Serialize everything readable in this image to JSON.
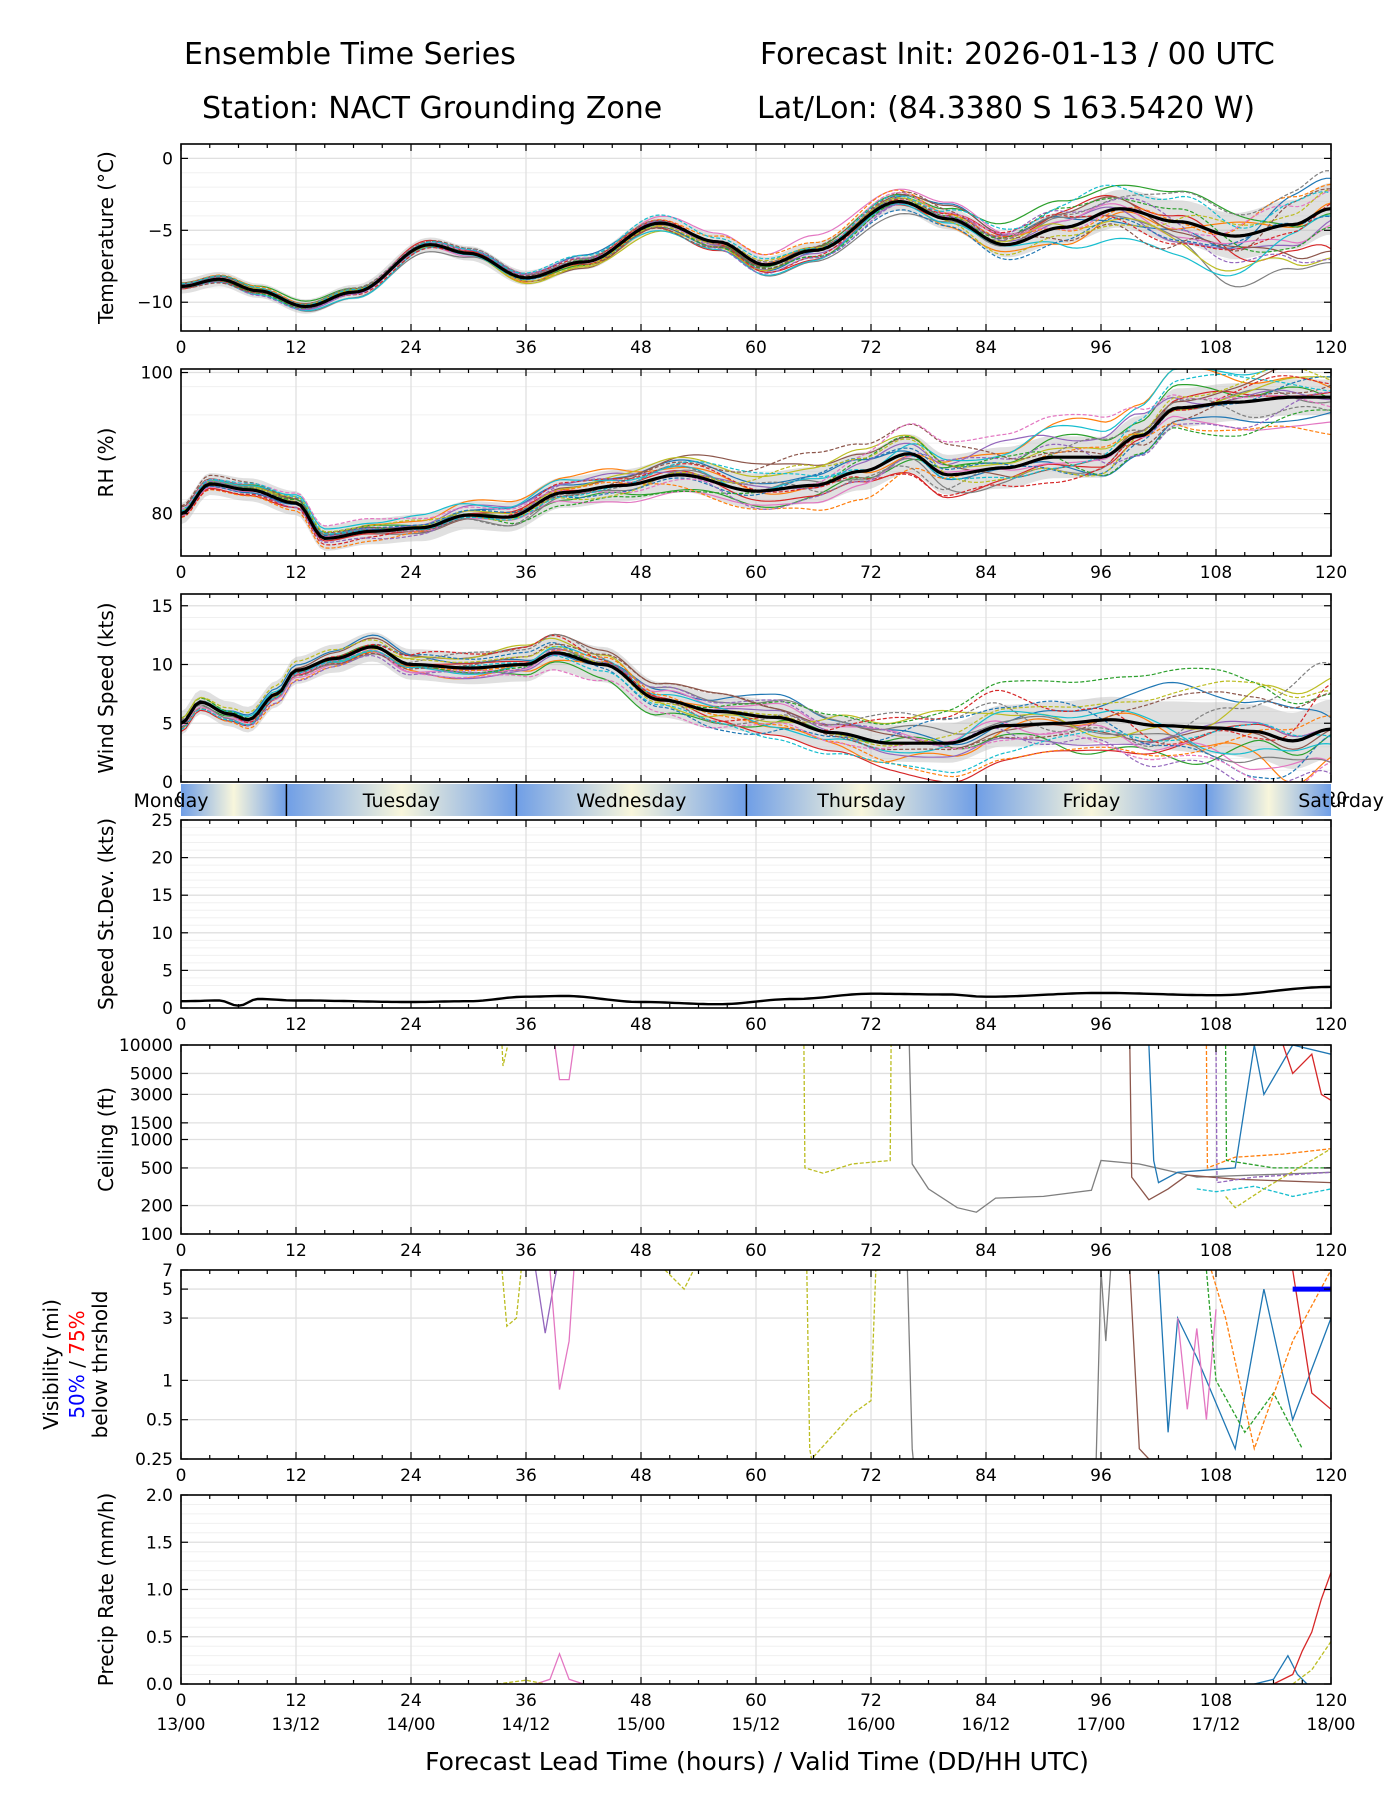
{
  "header": {
    "title_left_1": "Ensemble Time Series",
    "title_left_2": "Station: NACT Grounding Zone",
    "title_right_1": "Forecast Init: 2026-01-13 / 00 UTC",
    "title_right_2": "Lat/Lon: (84.3380 S 163.5420 W)"
  },
  "x_axis": {
    "ticks": [
      0,
      12,
      24,
      36,
      48,
      60,
      72,
      84,
      96,
      108,
      120
    ],
    "valid_time_labels": [
      "13/00",
      "13/12",
      "14/00",
      "14/12",
      "15/00",
      "15/12",
      "16/00",
      "16/12",
      "17/00",
      "17/12",
      "18/00"
    ],
    "xlabel": "Forecast Lead Time (hours) / Valid Time (DD/HH UTC)"
  },
  "day_band": {
    "days": [
      "Monday",
      "Tuesday",
      "Wednesday",
      "Thursday",
      "Friday",
      "Saturday"
    ]
  },
  "colors": {
    "mean": "#000000",
    "spread": "#bbbbbb",
    "members": [
      "#1f77b4",
      "#ff7f0e",
      "#2ca02c",
      "#d62728",
      "#9467bd",
      "#8c564b",
      "#e377c2",
      "#7f7f7f",
      "#bcbd22",
      "#17becf"
    ],
    "vis_50": "#0000ff",
    "vis_75": "#ff0000",
    "day_blue": "#6f9ee6",
    "day_cream": "#f8f6dc"
  },
  "chart_data": [
    {
      "id": "temperature",
      "type": "line",
      "ylabel": "Temperature (°C)",
      "ylim": [
        -12,
        1
      ],
      "yticks": [
        -10,
        -5,
        0
      ],
      "xlim": [
        0,
        120
      ],
      "mean": {
        "x": [
          0,
          4,
          8,
          13,
          18,
          26,
          30,
          36,
          42,
          50,
          56,
          61,
          66,
          75,
          80,
          86,
          92,
          98,
          104,
          110,
          116,
          120
        ],
        "y": [
          -8.9,
          -8.4,
          -9.2,
          -10.3,
          -9.3,
          -6.0,
          -6.6,
          -8.3,
          -7.2,
          -4.5,
          -5.8,
          -7.4,
          -6.4,
          -3.0,
          -4.2,
          -6.0,
          -4.8,
          -3.5,
          -4.4,
          -5.4,
          -4.6,
          -3.5
        ]
      },
      "spread_halfwidth": {
        "x": [
          0,
          36,
          72,
          84,
          100,
          120
        ],
        "y": [
          0.5,
          0.5,
          0.6,
          0.8,
          1.4,
          1.8
        ]
      },
      "member_count": 20
    },
    {
      "id": "rh",
      "type": "line",
      "ylabel": "RH (%)",
      "ylim": [
        74,
        100.5
      ],
      "yticks": [
        80,
        100
      ],
      "xlim": [
        0,
        120
      ],
      "mean": {
        "x": [
          0,
          3,
          7,
          12,
          15,
          20,
          25,
          30,
          34,
          40,
          46,
          52,
          60,
          66,
          71,
          76,
          80,
          86,
          91,
          96,
          100,
          104,
          110,
          116,
          120
        ],
        "y": [
          80,
          84.2,
          83.4,
          81.5,
          76.5,
          77.5,
          78.0,
          79.8,
          79.5,
          83.0,
          84.0,
          85.5,
          83.2,
          84.0,
          86.0,
          88.5,
          85.5,
          86.5,
          88.0,
          88.0,
          91.0,
          95.0,
          95.8,
          96.5,
          96.5
        ]
      },
      "spread_halfwidth": {
        "x": [
          0,
          30,
          60,
          90,
          120
        ],
        "y": [
          1.5,
          2.0,
          2.5,
          3.0,
          2.5
        ]
      },
      "member_count": 20
    },
    {
      "id": "wind_speed",
      "type": "line",
      "ylabel": "Wind Speed (kts)",
      "ylim": [
        0,
        16
      ],
      "yticks": [
        0,
        5,
        10,
        15
      ],
      "xlim": [
        0,
        120
      ],
      "mean": {
        "x": [
          0,
          2,
          5,
          7,
          10,
          12,
          16,
          20,
          24,
          30,
          36,
          39,
          44,
          50,
          56,
          62,
          68,
          74,
          80,
          86,
          92,
          97,
          102,
          108,
          112,
          116,
          120
        ],
        "y": [
          5.0,
          6.8,
          5.8,
          5.3,
          7.5,
          9.5,
          10.5,
          11.5,
          10.0,
          9.7,
          10.0,
          11.0,
          10.0,
          7.0,
          6.0,
          5.5,
          4.2,
          3.3,
          3.3,
          4.8,
          5.0,
          5.3,
          4.8,
          4.6,
          4.3,
          3.5,
          4.5
        ]
      },
      "spread_halfwidth": {
        "x": [
          0,
          40,
          70,
          100,
          120
        ],
        "y": [
          1.0,
          1.5,
          1.5,
          2.0,
          2.5
        ]
      },
      "member_count": 20
    },
    {
      "id": "speed_stdev",
      "type": "line",
      "ylabel": "Speed St.Dev. (kts)",
      "ylim": [
        0,
        25
      ],
      "yticks": [
        0,
        5,
        10,
        15,
        20,
        25
      ],
      "xlim": [
        0,
        120
      ],
      "mean": {
        "x": [
          0,
          4,
          6,
          8,
          12,
          24,
          30,
          36,
          40,
          48,
          56,
          64,
          72,
          80,
          84,
          96,
          108,
          120
        ],
        "y": [
          0.9,
          1.0,
          0.3,
          1.2,
          1.0,
          0.8,
          0.9,
          1.5,
          1.6,
          0.8,
          0.5,
          1.2,
          1.9,
          1.8,
          1.5,
          2.0,
          1.7,
          2.8
        ]
      }
    },
    {
      "id": "ceiling",
      "type": "line",
      "scale": "log",
      "ylabel": "Ceiling (ft)",
      "ylim": [
        100,
        10000
      ],
      "yticks": [
        100,
        200,
        500,
        1000,
        1500,
        3000,
        5000,
        10000
      ],
      "xlim": [
        0,
        120
      ],
      "series": [
        {
          "name": "m-gray",
          "color": "#7f7f7f",
          "x": [
            76,
            76.3,
            78,
            81,
            83,
            85,
            90,
            95,
            96,
            100,
            106,
            120
          ],
          "y": [
            10000,
            550,
            300,
            190,
            170,
            240,
            250,
            290,
            600,
            550,
            400,
            450
          ]
        },
        {
          "name": "m-olive",
          "color": "#bcbd22",
          "dashed": true,
          "x": [
            65,
            65.1,
            67,
            70,
            74,
            74.1
          ],
          "y": [
            10000,
            500,
            440,
            550,
            600,
            10000
          ]
        },
        {
          "name": "m-olive-2",
          "color": "#bcbd22",
          "dashed": true,
          "x": [
            33.5,
            33.6,
            34,
            34.1
          ],
          "y": [
            10000,
            6000,
            9000,
            10000
          ]
        },
        {
          "name": "m-pink",
          "color": "#e377c2",
          "x": [
            39,
            39.5,
            40.5,
            41,
            41.1
          ],
          "y": [
            10000,
            4300,
            4300,
            10000,
            10000
          ]
        },
        {
          "name": "m-brown",
          "color": "#8c564b",
          "x": [
            99,
            99.2,
            101,
            103,
            105,
            110,
            120
          ],
          "y": [
            10000,
            400,
            230,
            300,
            420,
            380,
            350
          ]
        },
        {
          "name": "m-blue",
          "color": "#1f77b4",
          "x": [
            101,
            101.5,
            102,
            104,
            110,
            112,
            113,
            116,
            120
          ],
          "y": [
            10000,
            600,
            350,
            450,
            500,
            10000,
            3000,
            10000,
            8000
          ]
        },
        {
          "name": "m-red",
          "color": "#d62728",
          "x": [
            115,
            116,
            118,
            119,
            120
          ],
          "y": [
            10000,
            5000,
            8000,
            3000,
            2600
          ]
        },
        {
          "name": "m-orange",
          "color": "#ff7f0e",
          "dashed": true,
          "x": [
            107,
            107.1,
            110,
            115,
            120
          ],
          "y": [
            10000,
            500,
            650,
            700,
            800
          ]
        },
        {
          "name": "m-cyan",
          "color": "#17becf",
          "dashed": true,
          "x": [
            106,
            108,
            112,
            116,
            120
          ],
          "y": [
            300,
            280,
            320,
            250,
            300
          ]
        },
        {
          "name": "m-purple",
          "color": "#9467bd",
          "dashed": true,
          "x": [
            108,
            108.1,
            112,
            120
          ],
          "y": [
            10000,
            350,
            400,
            450
          ]
        },
        {
          "name": "m-green",
          "color": "#2ca02c",
          "dashed": true,
          "x": [
            109,
            109.1,
            114,
            120
          ],
          "y": [
            10000,
            600,
            500,
            500
          ]
        },
        {
          "name": "m-olive-3",
          "color": "#bcbd22",
          "dashed": true,
          "x": [
            109,
            110,
            113,
            120
          ],
          "y": [
            250,
            190,
            300,
            800
          ]
        }
      ]
    },
    {
      "id": "visibility",
      "type": "line",
      "scale": "log",
      "ylabel_lines": [
        "Visibility (mi)",
        "50%",
        "/",
        "75%",
        "below thrshold"
      ],
      "ylim": [
        0.25,
        7
      ],
      "yticks": [
        0.25,
        0.5,
        1,
        3,
        5,
        7
      ],
      "xlim": [
        0,
        120
      ],
      "series": [
        {
          "name": "v-olive",
          "color": "#bcbd22",
          "dashed": true,
          "x": [
            33.5,
            34,
            35,
            35.5
          ],
          "y": [
            7,
            2.6,
            3.0,
            7
          ]
        },
        {
          "name": "v-purple",
          "color": "#9467bd",
          "x": [
            37,
            38,
            39,
            39.2
          ],
          "y": [
            7,
            2.3,
            6.0,
            7
          ]
        },
        {
          "name": "v-pink",
          "color": "#e377c2",
          "x": [
            38.5,
            39.5,
            40.5,
            41
          ],
          "y": [
            7,
            0.85,
            2.0,
            7
          ]
        },
        {
          "name": "v-olive-2",
          "color": "#bcbd22",
          "dashed": true,
          "x": [
            50.5,
            52.5,
            53.5
          ],
          "y": [
            7,
            5.0,
            7
          ]
        },
        {
          "name": "v-olive-3",
          "color": "#bcbd22",
          "dashed": true,
          "x": [
            65.3,
            65.6,
            65.8,
            70,
            72,
            72.5,
            73
          ],
          "y": [
            7,
            0.3,
            0.25,
            0.55,
            0.7,
            7,
            7
          ]
        },
        {
          "name": "v-gray",
          "color": "#7f7f7f",
          "x": [
            75.8,
            76.3,
            76.4
          ],
          "y": [
            7,
            0.3,
            0.25
          ]
        },
        {
          "name": "v-gray-2",
          "color": "#7f7f7f",
          "x": [
            95.5,
            96,
            96.5,
            97
          ],
          "y": [
            0.25,
            7,
            2.0,
            7
          ]
        },
        {
          "name": "v-brown",
          "color": "#8c564b",
          "x": [
            99,
            100,
            101
          ],
          "y": [
            7,
            0.3,
            0.25
          ]
        },
        {
          "name": "v-blue",
          "color": "#1f77b4",
          "x": [
            102,
            103,
            104,
            106,
            110,
            113,
            116,
            120
          ],
          "y": [
            7,
            0.4,
            3.0,
            1.5,
            0.3,
            5.0,
            0.5,
            3.0
          ]
        },
        {
          "name": "v-pink-2",
          "color": "#e377c2",
          "x": [
            104,
            105,
            106,
            107,
            108
          ],
          "y": [
            3.0,
            0.6,
            2.5,
            0.5,
            3.5
          ]
        },
        {
          "name": "v-green",
          "color": "#2ca02c",
          "dashed": true,
          "x": [
            107,
            108,
            111,
            114,
            117
          ],
          "y": [
            7,
            1.0,
            0.4,
            0.8,
            0.3
          ]
        },
        {
          "name": "v-orange",
          "color": "#ff7f0e",
          "dashed": true,
          "x": [
            107.5,
            109,
            112,
            116,
            120
          ],
          "y": [
            7,
            3.0,
            0.3,
            2.0,
            7
          ]
        },
        {
          "name": "v-red",
          "color": "#d62728",
          "x": [
            116,
            118,
            120
          ],
          "y": [
            7,
            0.8,
            0.6
          ]
        }
      ],
      "threshold_50": {
        "color": "#0000ff",
        "x": [
          116,
          120
        ],
        "y": [
          5.0,
          5.0
        ]
      }
    },
    {
      "id": "precip_rate",
      "type": "line",
      "ylabel": "Precip Rate (mm/h)",
      "ylim": [
        0,
        2.0
      ],
      "yticks": [
        0.0,
        0.5,
        1.0,
        1.5,
        2.0
      ],
      "xlim": [
        0,
        120
      ],
      "series": [
        {
          "name": "p-pink",
          "color": "#e377c2",
          "x": [
            37,
            38.5,
            39.5,
            40.5,
            42
          ],
          "y": [
            0,
            0.05,
            0.32,
            0.05,
            0
          ]
        },
        {
          "name": "p-olive",
          "color": "#bcbd22",
          "dashed": true,
          "x": [
            33,
            36,
            38
          ],
          "y": [
            0,
            0.04,
            0
          ]
        },
        {
          "name": "p-blue",
          "color": "#1f77b4",
          "x": [
            112,
            114,
            115.5,
            116.5,
            117.5
          ],
          "y": [
            0,
            0.05,
            0.3,
            0.1,
            0
          ]
        },
        {
          "name": "p-red",
          "color": "#d62728",
          "x": [
            114,
            116,
            117,
            118,
            119,
            120
          ],
          "y": [
            0,
            0.1,
            0.35,
            0.55,
            0.9,
            1.18
          ]
        },
        {
          "name": "p-olive-2",
          "color": "#bcbd22",
          "dashed": true,
          "x": [
            116,
            118,
            120
          ],
          "y": [
            0,
            0.15,
            0.45
          ]
        }
      ]
    }
  ]
}
